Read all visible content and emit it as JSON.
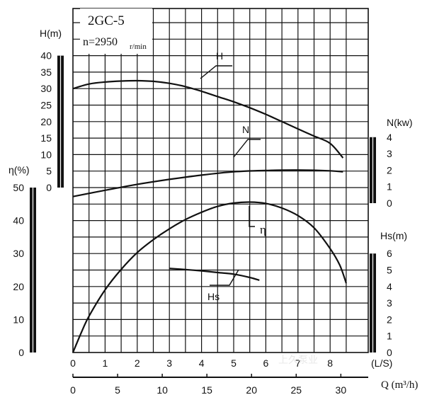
{
  "chart_data": {
    "type": "line",
    "title": "2GC-5",
    "speed_label": "n=2950",
    "speed_unit": "r/min",
    "x_axes": [
      {
        "name": "Q",
        "unit": "(L/S)",
        "range": [
          0,
          9
        ],
        "ticks": [
          "0",
          "1",
          "2",
          "3",
          "4",
          "5",
          "6",
          "7",
          "8"
        ]
      },
      {
        "name": "Q",
        "unit": "Q (m³/h)",
        "range": [
          0,
          32.4
        ],
        "ticks": [
          "0",
          "5",
          "10",
          "15",
          "20",
          "25",
          "30"
        ]
      }
    ],
    "y_axes": [
      {
        "label": "H(m)",
        "range": [
          0,
          40
        ],
        "ticks": [
          "0",
          "5",
          "10",
          "15",
          "20",
          "25",
          "30",
          "35",
          "40"
        ]
      },
      {
        "label": "η(%)",
        "range": [
          0,
          50
        ],
        "ticks": [
          "0",
          "10",
          "20",
          "30",
          "40",
          "50"
        ]
      },
      {
        "label": "N(kw)",
        "range": [
          0,
          4
        ],
        "ticks": [
          "0",
          "1",
          "2",
          "3",
          "4"
        ]
      },
      {
        "label": "Hs(m)",
        "range": [
          0,
          6
        ],
        "ticks": [
          "0",
          "1",
          "2",
          "3",
          "4",
          "5",
          "6"
        ]
      }
    ],
    "series": [
      {
        "name": "H",
        "axis": "H(m)",
        "x": [
          0,
          0.5,
          1,
          1.5,
          2,
          2.5,
          3,
          3.5,
          4,
          4.5,
          5,
          5.5,
          6,
          6.5,
          7,
          7.5,
          8,
          8.4
        ],
        "y": [
          30,
          31.4,
          32,
          32.3,
          32.4,
          32.2,
          31.6,
          30.6,
          29.2,
          27.6,
          26,
          24.2,
          22.2,
          20,
          17.8,
          15.6,
          13.4,
          9
        ]
      },
      {
        "name": "N",
        "axis": "N(kw)",
        "x": [
          0,
          1,
          2,
          3,
          4,
          5,
          6,
          7,
          8,
          8.4
        ],
        "y": [
          0.4,
          0.78,
          1.14,
          1.44,
          1.7,
          1.9,
          1.98,
          2.01,
          1.96,
          1.9
        ]
      },
      {
        "name": "η",
        "axis": "η(%)",
        "x": [
          0,
          0.25,
          0.5,
          1,
          1.5,
          2,
          2.5,
          3,
          3.5,
          4,
          4.5,
          5,
          5.5,
          6,
          6.5,
          7,
          7.5,
          8,
          8.3,
          8.5
        ],
        "y": [
          0,
          5.8,
          11,
          19,
          25.2,
          30.3,
          34.2,
          37.5,
          40.3,
          42.5,
          44.3,
          45.3,
          45.6,
          45.2,
          43.8,
          41.5,
          37.8,
          31.5,
          26.5,
          21
        ]
      },
      {
        "name": "Hs",
        "axis": "Hs(m)",
        "x": [
          3,
          3.5,
          4,
          4.5,
          5,
          5.5,
          5.8
        ],
        "y": [
          5.1,
          5.03,
          4.95,
          4.85,
          4.75,
          4.55,
          4.38
        ]
      }
    ],
    "grid": true,
    "watermark": "上久泵业"
  }
}
